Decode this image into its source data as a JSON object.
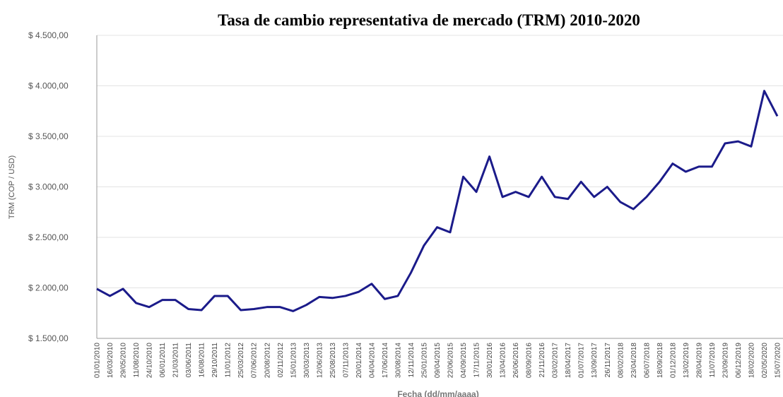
{
  "chart_data": {
    "type": "line",
    "title": "Tasa de cambio representativa de mercado (TRM) 2010-2020",
    "x_label": "Fecha (dd/mm/aaaa)",
    "y_label": "TRM (COP / USD)",
    "categories": [
      "01/01/2010",
      "16/03/2010",
      "29/05/2010",
      "11/08/2010",
      "24/10/2010",
      "06/01/2011",
      "21/03/2011",
      "03/06/2011",
      "16/08/2011",
      "29/10/2011",
      "11/01/2012",
      "25/03/2012",
      "07/06/2012",
      "20/08/2012",
      "02/11/2012",
      "15/01/2013",
      "30/03/2013",
      "12/06/2013",
      "25/08/2013",
      "07/11/2013",
      "20/01/2014",
      "04/04/2014",
      "17/06/2014",
      "30/08/2014",
      "12/11/2014",
      "25/01/2015",
      "09/04/2015",
      "22/06/2015",
      "04/09/2015",
      "17/11/2015",
      "30/01/2016",
      "13/04/2016",
      "26/06/2016",
      "08/09/2016",
      "21/11/2016",
      "03/02/2017",
      "18/04/2017",
      "01/07/2017",
      "13/09/2017",
      "26/11/2017",
      "08/02/2018",
      "23/04/2018",
      "06/07/2018",
      "18/09/2018",
      "01/12/2018",
      "13/02/2019",
      "28/04/2019",
      "11/07/2019",
      "23/09/2019",
      "06/12/2019",
      "18/02/2020",
      "02/05/2020",
      "15/07/2020"
    ],
    "series": [
      {
        "name": "TRM",
        "color": "#1b1b8a",
        "values": [
          1990,
          1920,
          1990,
          1850,
          1810,
          1880,
          1880,
          1790,
          1780,
          1920,
          1920,
          1780,
          1790,
          1810,
          1810,
          1770,
          1830,
          1910,
          1900,
          1920,
          1960,
          2040,
          1890,
          1920,
          2150,
          2420,
          2600,
          2550,
          3100,
          2950,
          3300,
          2900,
          2950,
          2900,
          3100,
          2900,
          2880,
          3050,
          2900,
          3000,
          2850,
          2780,
          2900,
          3050,
          3230,
          3150,
          3200,
          3200,
          3430,
          3450,
          3400,
          3950,
          3700
        ]
      }
    ],
    "ylim": [
      1500,
      4500
    ],
    "yticks": [
      {
        "value": 1500,
        "label": "$ 1.500,00"
      },
      {
        "value": 2000,
        "label": "$ 2.000,00"
      },
      {
        "value": 2500,
        "label": "$ 2.500,00"
      },
      {
        "value": 3000,
        "label": "$ 3.000,00"
      },
      {
        "value": 3500,
        "label": "$ 3.500,00"
      },
      {
        "value": 4000,
        "label": "$ 4.000,00"
      },
      {
        "value": 4500,
        "label": "$ 4.500,00"
      }
    ],
    "grid": true
  }
}
